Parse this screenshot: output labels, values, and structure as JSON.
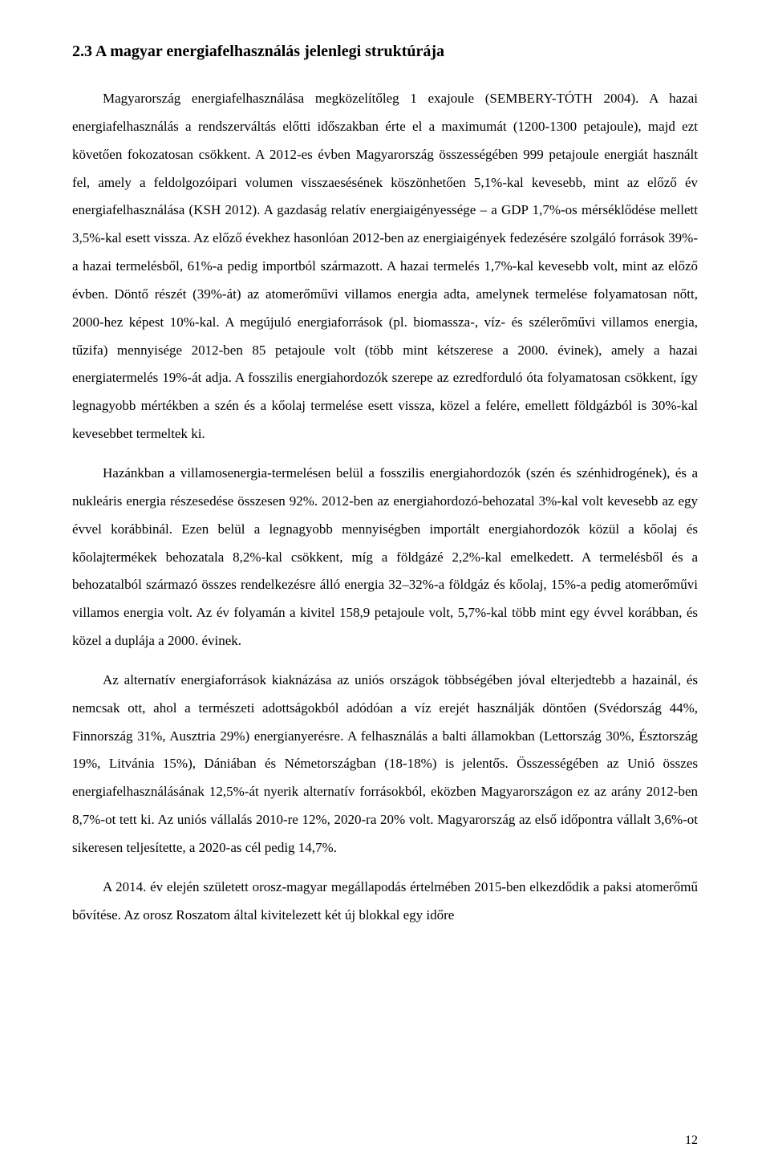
{
  "heading": "2.3  A magyar energiafelhasználás jelenlegi struktúrája",
  "paragraphs": [
    "Magyarország energiafelhasználása megközelítőleg 1 exajoule (SEMBERY-TÓTH 2004). A hazai energiafelhasználás a rendszerváltás előtti időszakban érte el a maximumát (1200-1300 petajoule), majd ezt követően fokozatosan csökkent. A 2012-es évben Magyarország összességében 999 petajoule energiát használt fel, amely a feldolgozóipari volumen visszaesésének köszönhetően 5,1%-kal kevesebb, mint az előző év energiafelhasználása (KSH 2012). A gazdaság relatív energiaigényessége – a GDP 1,7%-os mérséklődése mellett 3,5%-kal esett vissza. Az előző évekhez hasonlóan 2012-ben az energiaigények fedezésére szolgáló források 39%-a hazai termelésből, 61%-a pedig importból származott. A hazai termelés 1,7%-kal kevesebb volt, mint az előző évben. Döntő részét (39%-át) az atomerőművi villamos energia adta, amelynek termelése folyamatosan nőtt, 2000-hez képest 10%-kal. A megújuló energiaforrások (pl. biomassza-, víz- és szélerőművi villamos energia, tűzifa) mennyisége 2012-ben 85 petajoule volt (több mint kétszerese a 2000. évinek), amely a hazai energiatermelés 19%-át adja. A fosszilis energiahordozók szerepe az ezredforduló óta folyamatosan csökkent, így legnagyobb mértékben a szén és a kőolaj termelése esett vissza, közel a felére, emellett földgázból is 30%-kal kevesebbet termeltek ki.",
    "Hazánkban a villamosenergia-termelésen belül a fosszilis energiahordozók (szén és szénhidrogének), és a nukleáris energia részesedése összesen 92%. 2012-ben az energiahordozó-behozatal 3%-kal volt kevesebb az egy évvel korábbinál. Ezen belül a legnagyobb mennyiségben importált energiahordozók közül a kőolaj és kőolajtermékek behozatala 8,2%-kal csökkent, míg a földgázé 2,2%-kal emelkedett. A termelésből és a behozatalból származó összes rendelkezésre álló energia 32–32%-a földgáz és kőolaj, 15%-a pedig atomerőművi villamos energia volt. Az év folyamán a kivitel 158,9 petajoule volt, 5,7%-kal több mint egy évvel korábban, és közel a duplája a 2000. évinek.",
    "Az alternatív energiaforrások kiaknázása az uniós országok többségében jóval elterjedtebb a hazainál, és nemcsak ott, ahol a természeti adottságokból adódóan a víz erejét használják döntően (Svédország 44%, Finnország 31%, Ausztria 29%) energianyerésre. A felhasználás a balti államokban (Lettország 30%, Észtország 19%, Litvánia 15%), Dániában és Németországban (18-18%) is jelentős. Összességében az Unió összes energiafelhasználásának 12,5%-át nyerik alternatív forrásokból, eközben Magyarországon ez az arány 2012-ben 8,7%-ot tett ki. Az uniós vállalás 2010-re 12%, 2020-ra 20% volt. Magyarország az első időpontra vállalt 3,6%-ot sikeresen teljesítette, a 2020-as cél pedig 14,7%.",
    "A 2014. év elején született orosz-magyar megállapodás értelmében 2015-ben elkezdődik a paksi atomerőmű bővítése. Az orosz Roszatom által kivitelezett két új blokkal egy időre"
  ],
  "pageNumber": "12"
}
